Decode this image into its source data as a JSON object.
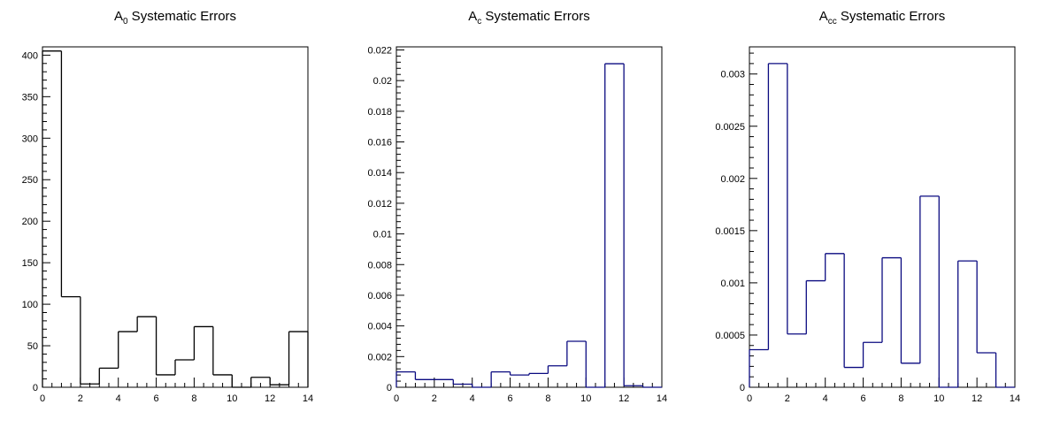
{
  "chart_data": [
    {
      "type": "bar",
      "title": {
        "base": "A",
        "sub": "0",
        "rest": " Systematic Errors"
      },
      "xlim": [
        0,
        14
      ],
      "ylim": [
        0,
        410
      ],
      "x_ticks": [
        0,
        2,
        4,
        6,
        8,
        10,
        12,
        14
      ],
      "y_ticks": [
        0,
        50,
        100,
        150,
        200,
        250,
        300,
        350,
        400
      ],
      "y_tick_labels": [
        "0",
        "50",
        "100",
        "150",
        "200",
        "250",
        "300",
        "350",
        "400"
      ],
      "bin_edges": [
        0,
        1,
        2,
        3,
        4,
        5,
        6,
        7,
        8,
        9,
        10,
        11,
        12,
        13,
        14
      ],
      "values": [
        405,
        109,
        4,
        23,
        67,
        85,
        15,
        33,
        73,
        15,
        0,
        12,
        3,
        67
      ],
      "line_color": "#000000"
    },
    {
      "type": "bar",
      "title": {
        "base": "A",
        "sub": "c",
        "rest": " Systematic Errors"
      },
      "xlim": [
        0,
        14
      ],
      "ylim": [
        0,
        0.0222
      ],
      "x_ticks": [
        0,
        2,
        4,
        6,
        8,
        10,
        12,
        14
      ],
      "y_ticks": [
        0,
        0.002,
        0.004,
        0.006,
        0.008,
        0.01,
        0.012,
        0.014,
        0.016,
        0.018,
        0.02,
        0.022
      ],
      "y_tick_labels": [
        "0",
        "0.002",
        "0.004",
        "0.006",
        "0.008",
        "0.01",
        "0.012",
        "0.014",
        "0.016",
        "0.018",
        "0.02",
        "0.022"
      ],
      "bin_edges": [
        0,
        1,
        2,
        3,
        4,
        5,
        6,
        7,
        8,
        9,
        10,
        11,
        12,
        13,
        14
      ],
      "values": [
        0.001,
        0.0005,
        0.0005,
        0.0002,
        0,
        0.001,
        0.0008,
        0.0009,
        0.0014,
        0.003,
        0,
        0.0211,
        0.0001,
        0
      ],
      "line_color": "#0a0a80"
    },
    {
      "type": "bar",
      "title": {
        "base": "A",
        "sub": "cc",
        "rest": " Systematic Errors"
      },
      "xlim": [
        0,
        14
      ],
      "ylim": [
        0,
        0.00326
      ],
      "x_ticks": [
        0,
        2,
        4,
        6,
        8,
        10,
        12,
        14
      ],
      "y_ticks": [
        0,
        0.0005,
        0.001,
        0.0015,
        0.002,
        0.0025,
        0.003
      ],
      "y_tick_labels": [
        "0",
        "0.0005",
        "0.001",
        "0.0015",
        "0.002",
        "0.0025",
        "0.003"
      ],
      "bin_edges": [
        0,
        1,
        2,
        3,
        4,
        5,
        6,
        7,
        8,
        9,
        10,
        11,
        12,
        13,
        14
      ],
      "values": [
        0.00036,
        0.0031,
        0.00051,
        0.00102,
        0.00128,
        0.00019,
        0.00043,
        0.00124,
        0.00023,
        0.00183,
        0,
        0.00121,
        0.00033,
        0
      ],
      "line_color": "#0a0a80"
    }
  ]
}
